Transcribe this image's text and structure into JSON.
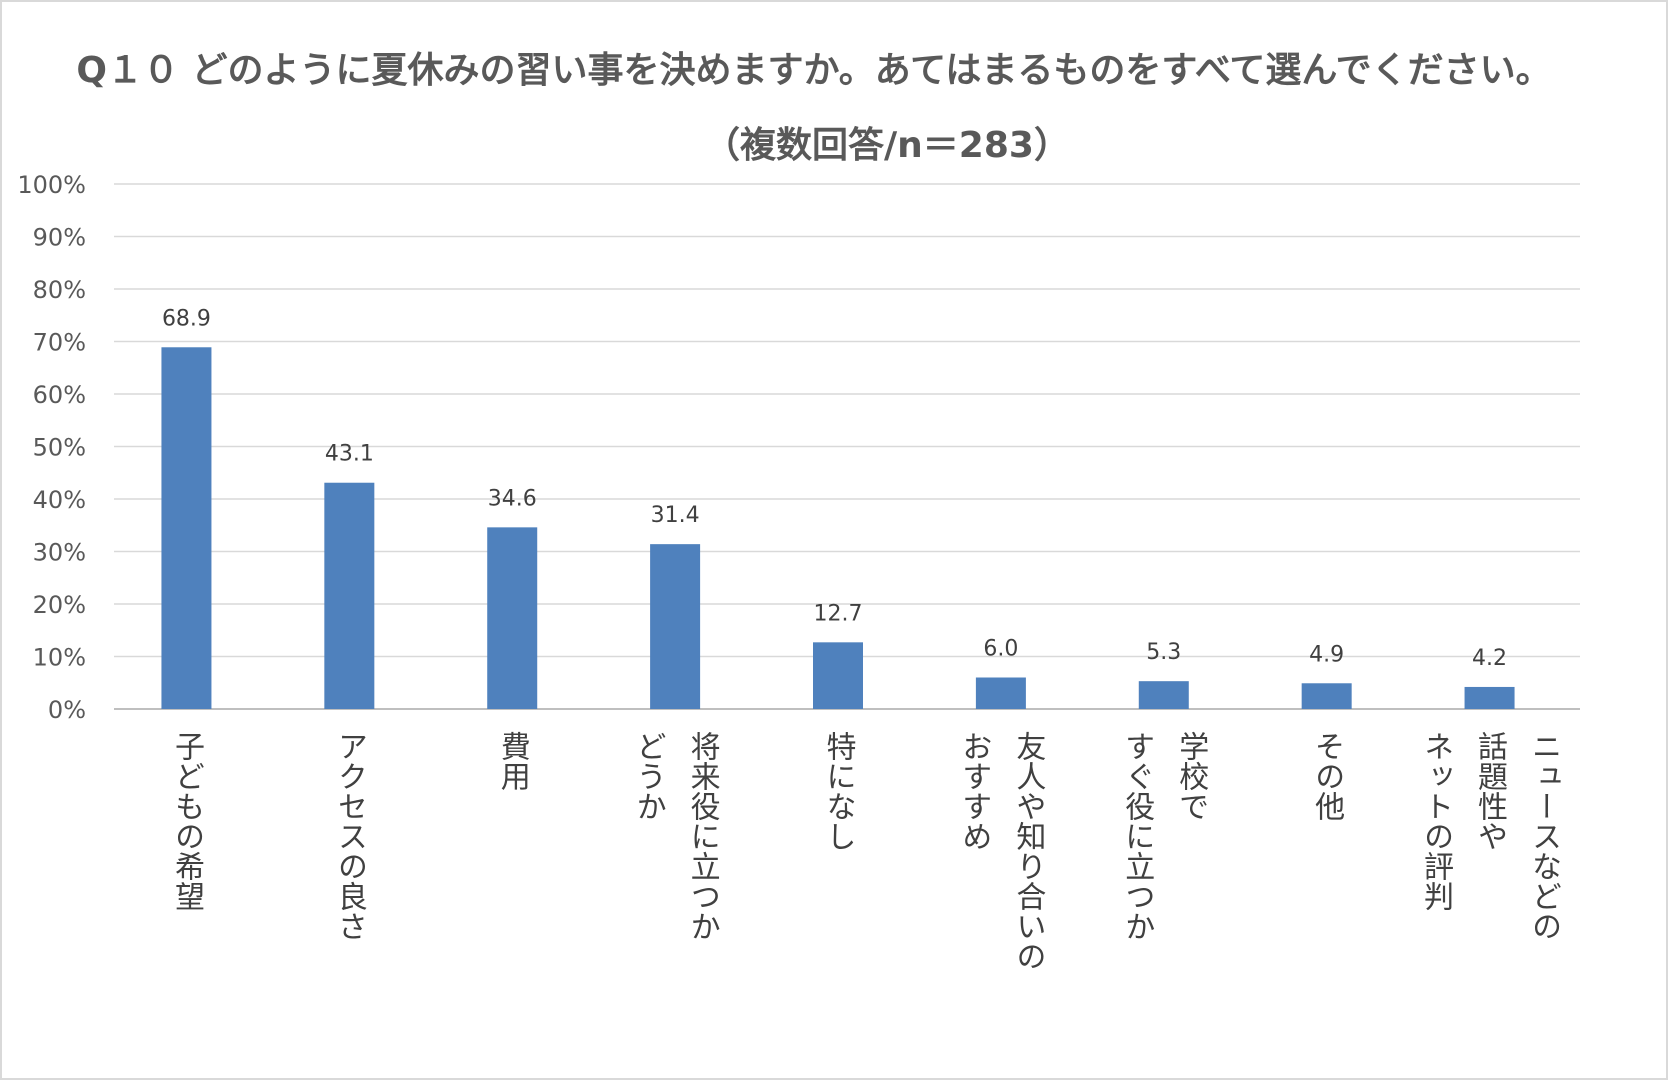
{
  "chart_data": {
    "type": "bar",
    "title": "Q１０ どのように夏休みの習い事を決めますか。あてはまるものをすべて選んでください。",
    "subtitle": "（複数回答/n＝283）",
    "xlabel": "",
    "ylabel": "",
    "ylim": [
      0,
      100
    ],
    "y_ticks": [
      "0%",
      "10%",
      "20%",
      "30%",
      "40%",
      "50%",
      "60%",
      "70%",
      "80%",
      "90%",
      "100%"
    ],
    "grid": true,
    "legend": "none",
    "bar_color": "#4f81bd",
    "categories": [
      [
        "子どもの希望"
      ],
      [
        "アクセスの良さ"
      ],
      [
        "費用"
      ],
      [
        "将来役に立つか",
        "どうか"
      ],
      [
        "特になし"
      ],
      [
        "友人や知り合いの",
        "おすすめ"
      ],
      [
        "学校で",
        "すぐ役に立つか"
      ],
      [
        "その他"
      ],
      [
        "ニュースなどの",
        "話題性や",
        "ネットの評判"
      ]
    ],
    "values": [
      68.9,
      43.1,
      34.6,
      31.4,
      12.7,
      6.0,
      5.3,
      4.9,
      4.2
    ],
    "value_labels": [
      "68.9",
      "43.1",
      "34.6",
      "31.4",
      "12.7",
      "6.0",
      "5.3",
      "4.9",
      "4.2"
    ]
  }
}
